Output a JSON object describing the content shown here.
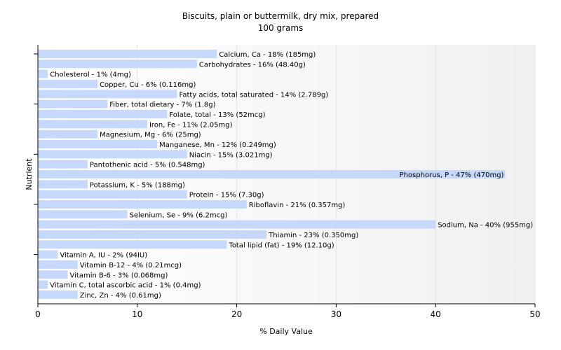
{
  "chart_data": {
    "type": "bar",
    "orientation": "horizontal",
    "title": "Biscuits, plain or buttermilk, dry mix, prepared",
    "subtitle": "100 grams",
    "xlabel": "% Daily Value",
    "ylabel": "Nutrient",
    "xlim": [
      0,
      50
    ],
    "xticks": [
      "0",
      "10",
      "20",
      "30",
      "40",
      "50"
    ],
    "grid": true,
    "bar_color": "#c6d9fd",
    "categories": [
      "Calcium, Ca",
      "Carbohydrates",
      "Cholesterol",
      "Copper, Cu",
      "Fatty acids, total saturated",
      "Fiber, total dietary",
      "Folate, total",
      "Iron, Fe",
      "Magnesium, Mg",
      "Manganese, Mn",
      "Niacin",
      "Pantothenic acid",
      "Phosphorus, P",
      "Potassium, K",
      "Protein",
      "Riboflavin",
      "Selenium, Se",
      "Sodium, Na",
      "Thiamin",
      "Total lipid (fat)",
      "Vitamin A, IU",
      "Vitamin B-12",
      "Vitamin B-6",
      "Vitamin C, total ascorbic acid",
      "Zinc, Zn"
    ],
    "values": [
      18,
      16,
      1,
      6,
      14,
      7,
      13,
      11,
      6,
      12,
      15,
      5,
      47,
      5,
      15,
      21,
      9,
      40,
      23,
      19,
      2,
      4,
      3,
      1,
      4
    ],
    "labels": [
      "Calcium, Ca - 18% (185mg)",
      "Carbohydrates - 16% (48.40g)",
      "Cholesterol - 1% (4mg)",
      "Copper, Cu - 6% (0.116mg)",
      "Fatty acids, total saturated - 14% (2.789g)",
      "Fiber, total dietary - 7% (1.8g)",
      "Folate, total - 13% (52mcg)",
      "Iron, Fe - 11% (2.05mg)",
      "Magnesium, Mg - 6% (25mg)",
      "Manganese, Mn - 12% (0.249mg)",
      "Niacin - 15% (3.021mg)",
      "Pantothenic acid - 5% (0.548mg)",
      "Phosphorus, P - 47% (470mg)",
      "Potassium, K - 5% (188mg)",
      "Protein - 15% (7.30g)",
      "Riboflavin - 21% (0.357mg)",
      "Selenium, Se - 9% (6.2mcg)",
      "Sodium, Na - 40% (955mg)",
      "Thiamin - 23% (0.350mg)",
      "Total lipid (fat) - 19% (12.10g)",
      "Vitamin A, IU - 2% (94IU)",
      "Vitamin B-12 - 4% (0.21mcg)",
      "Vitamin B-6 - 3% (0.068mg)",
      "Vitamin C, total ascorbic acid - 1% (0.4mg)",
      "Zinc, Zn - 4% (0.61mg)"
    ]
  }
}
